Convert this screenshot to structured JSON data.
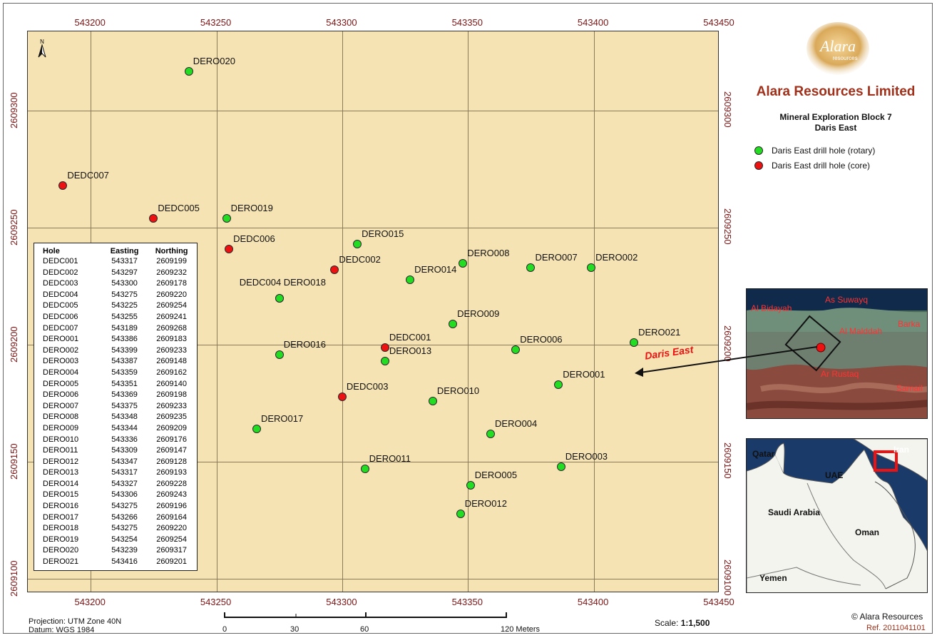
{
  "map": {
    "x_ticks": [
      "543200",
      "543250",
      "543300",
      "543350",
      "543400",
      "543450"
    ],
    "y_ticks": [
      "2609300",
      "2609250",
      "2609200",
      "2609150",
      "2609100"
    ],
    "north_label": "N",
    "colors": {
      "rotary": "#22dd22",
      "core": "#ee1111",
      "background": "#f6e3b4",
      "tick_text": "#7b1515"
    }
  },
  "holes": [
    {
      "hole": "DEDC001",
      "easting": 543317,
      "northing": 2609199,
      "type": "core"
    },
    {
      "hole": "DEDC002",
      "easting": 543297,
      "northing": 2609232,
      "type": "core"
    },
    {
      "hole": "DEDC003",
      "easting": 543300,
      "northing": 2609178,
      "type": "core"
    },
    {
      "hole": "DEDC004",
      "easting": 543275,
      "northing": 2609220,
      "type": "rotary"
    },
    {
      "hole": "DEDC005",
      "easting": 543225,
      "northing": 2609254,
      "type": "core"
    },
    {
      "hole": "DEDC006",
      "easting": 543255,
      "northing": 2609241,
      "type": "core"
    },
    {
      "hole": "DEDC007",
      "easting": 543189,
      "northing": 2609268,
      "type": "core"
    },
    {
      "hole": "DERO001",
      "easting": 543386,
      "northing": 2609183,
      "type": "rotary"
    },
    {
      "hole": "DERO002",
      "easting": 543399,
      "northing": 2609233,
      "type": "rotary"
    },
    {
      "hole": "DERO003",
      "easting": 543387,
      "northing": 2609148,
      "type": "rotary"
    },
    {
      "hole": "DERO004",
      "easting": 543359,
      "northing": 2609162,
      "type": "rotary"
    },
    {
      "hole": "DERO005",
      "easting": 543351,
      "northing": 2609140,
      "type": "rotary"
    },
    {
      "hole": "DERO006",
      "easting": 543369,
      "northing": 2609198,
      "type": "rotary"
    },
    {
      "hole": "DERO007",
      "easting": 543375,
      "northing": 2609233,
      "type": "rotary"
    },
    {
      "hole": "DERO008",
      "easting": 543348,
      "northing": 2609235,
      "type": "rotary"
    },
    {
      "hole": "DERO009",
      "easting": 543344,
      "northing": 2609209,
      "type": "rotary"
    },
    {
      "hole": "DERO010",
      "easting": 543336,
      "northing": 2609176,
      "type": "rotary"
    },
    {
      "hole": "DERO011",
      "easting": 543309,
      "northing": 2609147,
      "type": "rotary"
    },
    {
      "hole": "DERO012",
      "easting": 543347,
      "northing": 2609128,
      "type": "rotary"
    },
    {
      "hole": "DERO013",
      "easting": 543317,
      "northing": 2609193,
      "type": "rotary"
    },
    {
      "hole": "DERO014",
      "easting": 543327,
      "northing": 2609228,
      "type": "rotary"
    },
    {
      "hole": "DERO015",
      "easting": 543306,
      "northing": 2609243,
      "type": "rotary"
    },
    {
      "hole": "DERO016",
      "easting": 543275,
      "northing": 2609196,
      "type": "rotary"
    },
    {
      "hole": "DERO017",
      "easting": 543266,
      "northing": 2609164,
      "type": "rotary"
    },
    {
      "hole": "DERO018",
      "easting": 543275,
      "northing": 2609220,
      "type": "rotary"
    },
    {
      "hole": "DERO019",
      "easting": 543254,
      "northing": 2609254,
      "type": "rotary"
    },
    {
      "hole": "DERO020",
      "easting": 543239,
      "northing": 2609317,
      "type": "rotary"
    },
    {
      "hole": "DERO021",
      "easting": 543416,
      "northing": 2609201,
      "type": "rotary"
    }
  ],
  "table": {
    "headers": [
      "Hole",
      "Easting",
      "Northing"
    ]
  },
  "sidebar": {
    "logo_text": "Alara",
    "logo_sub": "resources",
    "company": "Alara Resources Limited",
    "subtitle1": "Mineral Exploration Block 7",
    "subtitle2": "Daris East",
    "legend": [
      {
        "label": "Daris East drill hole (rotary)",
        "color": "#22dd22"
      },
      {
        "label": "Daris East drill hole (core)",
        "color": "#ee1111"
      }
    ]
  },
  "callout": "Daris East",
  "inset1": {
    "places": [
      "As Suwayq",
      "Al Bidayah",
      "Barka",
      "Al Malddah",
      "Ar Rustaq",
      "Samail"
    ]
  },
  "inset2": {
    "places": [
      "Qatar",
      "Iran",
      "UAE",
      "Saudi Arabia",
      "Oman",
      "Yemen"
    ]
  },
  "footer": {
    "projection": "Projection: UTM Zone 40N",
    "datum": "Datum: WGS 1984",
    "scale_ticks": [
      "0",
      "30",
      "60",
      "120 Meters"
    ],
    "scale_label": "Scale:",
    "scale_value": "1:1,500",
    "copyright": "© Alara Resources",
    "ref": "Ref. 2011041101"
  }
}
